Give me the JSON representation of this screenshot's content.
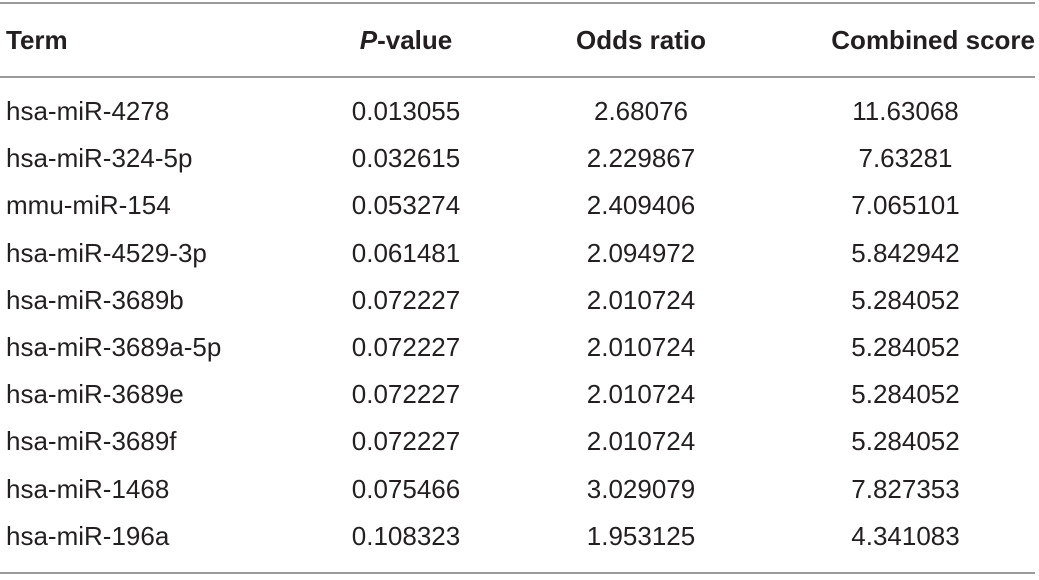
{
  "table": {
    "header": [
      "Term",
      [
        "P",
        "-value"
      ],
      "Odds ratio",
      "Combined score"
    ],
    "rows": [
      [
        "hsa-miR-4278",
        "0.013055",
        "2.68076",
        "11.63068"
      ],
      [
        "hsa-miR-324-5p",
        "0.032615",
        "2.229867",
        "7.63281"
      ],
      [
        "mmu-miR-154",
        "0.053274",
        "2.409406",
        "7.065101"
      ],
      [
        "hsa-miR-4529-3p",
        "0.061481",
        "2.094972",
        "5.842942"
      ],
      [
        "hsa-miR-3689b",
        "0.072227",
        "2.010724",
        "5.284052"
      ],
      [
        "hsa-miR-3689a-5p",
        "0.072227",
        "2.010724",
        "5.284052"
      ],
      [
        "hsa-miR-3689e",
        "0.072227",
        "2.010724",
        "5.284052"
      ],
      [
        "hsa-miR-3689f",
        "0.072227",
        "2.010724",
        "5.284052"
      ],
      [
        "hsa-miR-1468",
        "0.075466",
        "3.029079",
        "7.827353"
      ],
      [
        "hsa-miR-196a",
        "0.108323",
        "1.953125",
        "4.341083"
      ]
    ]
  }
}
